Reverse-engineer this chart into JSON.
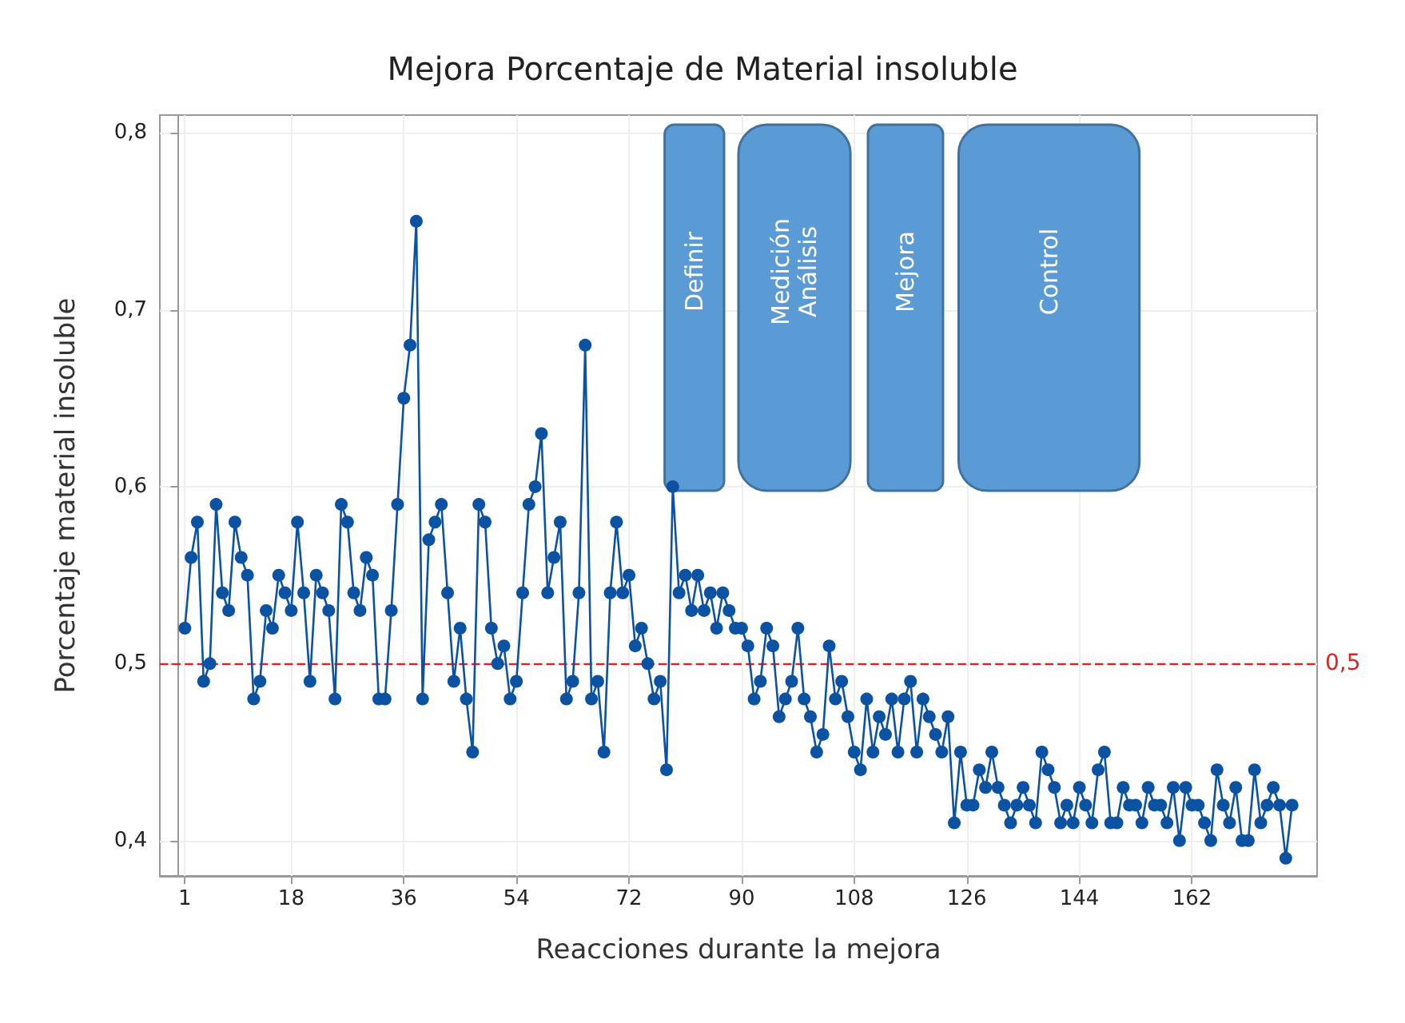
{
  "chart_data": {
    "type": "line",
    "title": "Mejora Porcentaje de Material insoluble",
    "xlabel": "Reacciones durante la mejora",
    "ylabel": "Porcentaje material insoluble",
    "x": [
      1,
      2,
      3,
      4,
      5,
      6,
      7,
      8,
      9,
      10,
      11,
      12,
      13,
      14,
      15,
      16,
      17,
      18,
      19,
      20,
      21,
      22,
      23,
      24,
      25,
      26,
      27,
      28,
      29,
      30,
      31,
      32,
      33,
      34,
      35,
      36,
      37,
      38,
      39,
      40,
      41,
      42,
      43,
      44,
      45,
      46,
      47,
      48,
      49,
      50,
      51,
      52,
      53,
      54,
      55,
      56,
      57,
      58,
      59,
      60,
      61,
      62,
      63,
      64,
      65,
      66,
      67,
      68,
      69,
      70,
      71,
      72,
      73,
      74,
      75,
      76,
      77,
      78,
      79,
      80,
      81,
      82,
      83,
      84,
      85,
      86,
      87,
      88,
      89,
      90,
      91,
      92,
      93,
      94,
      95,
      96,
      97,
      98,
      99,
      100,
      101,
      102,
      103,
      104,
      105,
      106,
      107,
      108,
      109,
      110,
      111,
      112,
      113,
      114,
      115,
      116,
      117,
      118,
      119,
      120,
      121,
      122,
      123,
      124,
      125,
      126,
      127,
      128,
      129,
      130,
      131,
      132,
      133,
      134,
      135,
      136,
      137,
      138,
      139,
      140,
      141,
      142,
      143,
      144,
      145,
      146,
      147,
      148,
      149,
      150,
      151,
      152,
      153,
      154,
      155,
      156,
      157,
      158,
      159,
      160,
      161,
      162,
      163,
      164,
      165,
      166,
      167,
      168,
      169,
      170,
      171,
      172,
      173,
      174,
      175,
      176,
      177,
      178
    ],
    "series": [
      {
        "color": "#0b52a3",
        "values": [
          0.52,
          0.56,
          0.58,
          0.49,
          0.5,
          0.59,
          0.54,
          0.53,
          0.58,
          0.56,
          0.55,
          0.48,
          0.49,
          0.53,
          0.52,
          0.55,
          0.54,
          0.53,
          0.58,
          0.54,
          0.49,
          0.55,
          0.54,
          0.53,
          0.48,
          0.59,
          0.58,
          0.54,
          0.53,
          0.56,
          0.55,
          0.48,
          0.48,
          0.53,
          0.59,
          0.65,
          0.68,
          0.75,
          0.48,
          0.57,
          0.58,
          0.59,
          0.54,
          0.49,
          0.52,
          0.48,
          0.45,
          0.59,
          0.58,
          0.52,
          0.5,
          0.51,
          0.48,
          0.49,
          0.54,
          0.59,
          0.6,
          0.63,
          0.54,
          0.56,
          0.58,
          0.48,
          0.49,
          0.54,
          0.68,
          0.48,
          0.49,
          0.45,
          0.54,
          0.58,
          0.54,
          0.55,
          0.51,
          0.52,
          0.5,
          0.48,
          0.49,
          0.44,
          0.6,
          0.54,
          0.55,
          0.53,
          0.55,
          0.53,
          0.54,
          0.52,
          0.54,
          0.53,
          0.52,
          0.52,
          0.51,
          0.48,
          0.49,
          0.52,
          0.51,
          0.47,
          0.48,
          0.49,
          0.52,
          0.48,
          0.47,
          0.45,
          0.46,
          0.51,
          0.48,
          0.49,
          0.47,
          0.45,
          0.44,
          0.48,
          0.45,
          0.47,
          0.46,
          0.48,
          0.45,
          0.48,
          0.49,
          0.45,
          0.48,
          0.47,
          0.46,
          0.45,
          0.47,
          0.41,
          0.45,
          0.42,
          0.42,
          0.44,
          0.43,
          0.45,
          0.43,
          0.42,
          0.41,
          0.42,
          0.43,
          0.42,
          0.41,
          0.45,
          0.44,
          0.43,
          0.41,
          0.42,
          0.41,
          0.43,
          0.42,
          0.41,
          0.44,
          0.45,
          0.41,
          0.41,
          0.43,
          0.42,
          0.42,
          0.41,
          0.43,
          0.42,
          0.42,
          0.41,
          0.43,
          0.4,
          0.43,
          0.42,
          0.42,
          0.41,
          0.4,
          0.44,
          0.42,
          0.41,
          0.43,
          0.4,
          0.4,
          0.44,
          0.41,
          0.42,
          0.43,
          0.42,
          0.39,
          0.42
        ]
      }
    ],
    "xlim": [
      -3,
      182
    ],
    "xticks": [
      1,
      18,
      36,
      54,
      72,
      90,
      108,
      126,
      144,
      162
    ],
    "ylim": [
      0.38,
      0.81
    ],
    "yticks": [
      {
        "value": 0.4,
        "label": "0,4"
      },
      {
        "value": 0.5,
        "label": "0,5"
      },
      {
        "value": 0.6,
        "label": "0,6"
      },
      {
        "value": 0.7,
        "label": "0,7"
      },
      {
        "value": 0.8,
        "label": "0,8"
      }
    ],
    "ref_lines": [
      {
        "axis": "y",
        "value": 0.5,
        "label": "0,5",
        "color": "#d62728",
        "line_style": "dashed"
      }
    ],
    "bands": [
      {
        "axis": "x",
        "from": 77.7,
        "to": 87.2,
        "label": "Definir",
        "color": "#5b9bd5"
      },
      {
        "axis": "x",
        "from": 89.5,
        "to": 107.4,
        "label": "Medición\nAnálisis",
        "color": "#5b9bd5"
      },
      {
        "axis": "x",
        "from": 110.2,
        "to": 122.2,
        "label": "Mejora",
        "color": "#5b9bd5"
      },
      {
        "axis": "x",
        "from": 124.7,
        "to": 153.6,
        "label": "Control",
        "color": "#5b9bd5"
      }
    ],
    "grid": true,
    "marker": "circle",
    "line_style": "solid"
  }
}
